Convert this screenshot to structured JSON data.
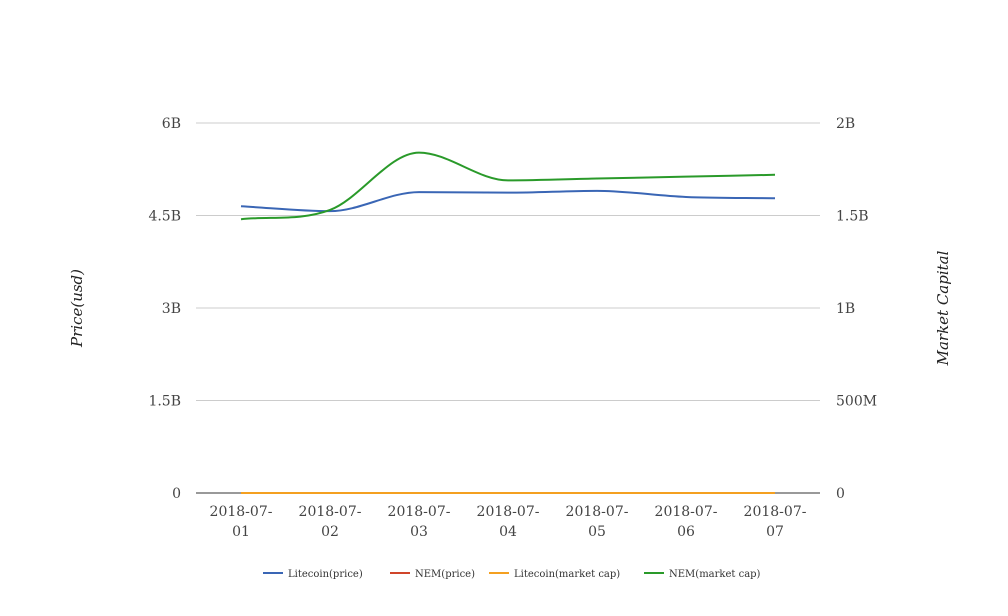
{
  "chart_data": {
    "type": "line",
    "categories": [
      "2018-07-01",
      "2018-07-02",
      "2018-07-03",
      "2018-07-04",
      "2018-07-05",
      "2018-07-06",
      "2018-07-07"
    ],
    "category_lines": [
      [
        "2018-07-",
        "01"
      ],
      [
        "2018-07-",
        "02"
      ],
      [
        "2018-07-",
        "03"
      ],
      [
        "2018-07-",
        "04"
      ],
      [
        "2018-07-",
        "05"
      ],
      [
        "2018-07-",
        "06"
      ],
      [
        "2018-07-",
        "07"
      ]
    ],
    "ylabel_left": "Price(usd)",
    "ylabel_right": "Market Capital",
    "ylim_left": [
      0,
      6000000000
    ],
    "ylim_right": [
      0,
      2000000000
    ],
    "left_ticks": [
      {
        "value": 0,
        "label": "0"
      },
      {
        "value": 1500000000,
        "label": "1.5B"
      },
      {
        "value": 3000000000,
        "label": "3B"
      },
      {
        "value": 4500000000,
        "label": "4.5B"
      },
      {
        "value": 6000000000,
        "label": "6B"
      }
    ],
    "right_ticks": [
      {
        "value": 0,
        "label": "0"
      },
      {
        "value": 500000000,
        "label": "500M"
      },
      {
        "value": 1000000000,
        "label": "1B"
      },
      {
        "value": 1500000000,
        "label": "1.5B"
      },
      {
        "value": 2000000000,
        "label": "2B"
      }
    ],
    "grid": true,
    "legend_position": "bottom",
    "series": [
      {
        "name": "Litecoin(price)",
        "axis": "left",
        "color": "#3a66b5",
        "values": [
          4650000000,
          4570000000,
          4880000000,
          4870000000,
          4900000000,
          4800000000,
          4780000000
        ]
      },
      {
        "name": "NEM(price)",
        "axis": "left",
        "color": "#d0452a",
        "values": [
          0.19,
          0.18,
          0.19,
          0.18,
          0.18,
          0.18,
          0.18
        ]
      },
      {
        "name": "Litecoin(market cap)",
        "axis": "right",
        "color": "#f4a020",
        "values": [
          82,
          79,
          86,
          85,
          85,
          83,
          82
        ]
      },
      {
        "name": "NEM(market cap)",
        "axis": "right",
        "color": "#2a9a2a",
        "values": [
          1480000000,
          1530000000,
          1840000000,
          1690000000,
          1700000000,
          1710000000,
          1720000000
        ]
      }
    ]
  }
}
